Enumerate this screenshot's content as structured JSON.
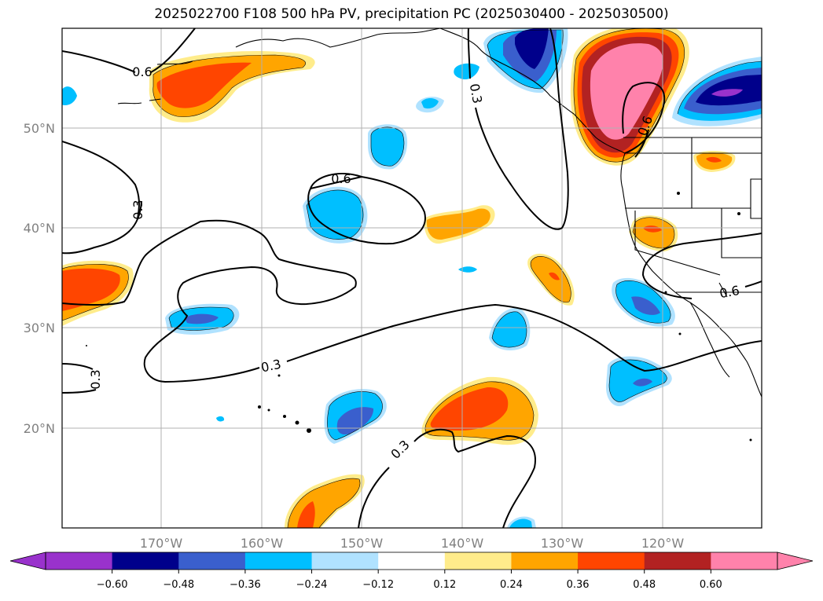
{
  "title": "2025022700 F108 500 hPa PV, precipitation PC (2025030400 - 2025030500)",
  "map": {
    "lat_labels": [
      "50°N",
      "40°N",
      "30°N",
      "20°N"
    ],
    "lon_labels": [
      "170°W",
      "160°W",
      "150°W",
      "140°W",
      "130°W",
      "120°W"
    ],
    "contour_labels": {
      "c1": "0.6",
      "c2": "0.3",
      "c3": "0.6",
      "c4": "0.3",
      "c5": "0.6",
      "c6": "0.3",
      "c7": "0.3",
      "c8": "0.6",
      "c9": "0.3"
    }
  },
  "colorbar": {
    "ticks": [
      "−0.60",
      "−0.48",
      "−0.36",
      "−0.24",
      "−0.12",
      "0.12",
      "0.24",
      "0.36",
      "0.48",
      "0.60"
    ],
    "colors": [
      "#9932cc",
      "#00008b",
      "#3a5fcd",
      "#00bfff",
      "#b0e2ff",
      "#ffffff",
      "#ffec8b",
      "#ffa500",
      "#ff4500",
      "#b22222",
      "#ff82ab"
    ]
  }
}
